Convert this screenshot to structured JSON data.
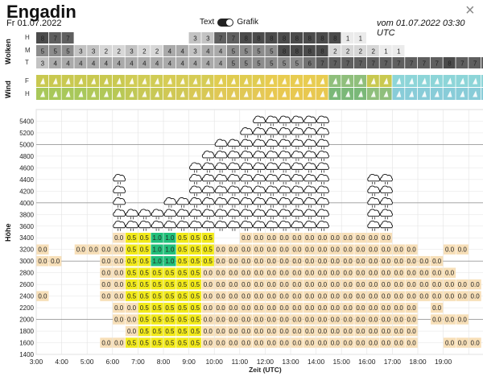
{
  "header": {
    "title": "Engadin",
    "date": "Fr 01.07.2022",
    "toggle_left": "Text",
    "toggle_right": "Grafik",
    "run_info": "vom 01.07.2022 03:30 UTC",
    "close_symbol": "×"
  },
  "labels": {
    "wolken": "Wolken",
    "wind": "Wind",
    "hoehe": "Höhe",
    "zeit": "Zeit (UTC)",
    "H": "H",
    "M": "M",
    "T": "T",
    "F": "F"
  },
  "clouds": {
    "H": [
      8,
      7,
      7,
      null,
      null,
      null,
      null,
      null,
      null,
      null,
      null,
      null,
      3,
      3,
      7,
      7,
      8,
      8,
      8,
      8,
      8,
      8,
      8,
      8,
      1,
      1,
      null,
      null,
      null,
      null,
      null,
      null,
      null,
      null,
      null,
      null
    ],
    "M": [
      5,
      5,
      5,
      3,
      3,
      2,
      2,
      3,
      2,
      2,
      4,
      4,
      3,
      4,
      4,
      5,
      5,
      5,
      5,
      8,
      8,
      8,
      8,
      2,
      2,
      2,
      2,
      1,
      1,
      null,
      null,
      null,
      null,
      null,
      null,
      null
    ],
    "T": [
      3,
      4,
      4,
      4,
      4,
      4,
      4,
      4,
      4,
      4,
      4,
      4,
      4,
      4,
      4,
      5,
      5,
      5,
      5,
      5,
      5,
      6,
      7,
      7,
      7,
      7,
      7,
      7,
      7,
      7,
      7,
      7,
      8,
      7,
      7,
      7
    ]
  },
  "wind_colors": {
    "F": [
      "#c9c950",
      "#c9c950",
      "#c9c950",
      "#c9c950",
      "#c9c950",
      "#c9c950",
      "#c9c950",
      "#d0cc55",
      "#d0cc55",
      "#d0cc55",
      "#d6cc55",
      "#d6cc55",
      "#d6cc55",
      "#d6cc55",
      "#e0cc50",
      "#e0cc50",
      "#e0cc50",
      "#e0cc50",
      "#e8cc50",
      "#e8cc50",
      "#e8cc50",
      "#e8cc50",
      "#e8cc50",
      "#8fbf7c",
      "#8fbf7c",
      "#8fbf7c",
      "#c9c950",
      "#c9c950",
      "#8dd5d8",
      "#8dd5d8",
      "#8dd5d8",
      "#8dd5d8",
      "#8dd5d8",
      "#8dd5d8",
      "#8dd5d8",
      "#8dd5d8"
    ],
    "H": [
      "#a8c85a",
      "#a8c85a",
      "#a8c85a",
      "#a8c85a",
      "#b0c858",
      "#b0c858",
      "#b8c855",
      "#c0c855",
      "#c8c855",
      "#c8c855",
      "#d0c855",
      "#d0c855",
      "#d8c855",
      "#d8c855",
      "#e0c855",
      "#e0c855",
      "#e0c855",
      "#e4c855",
      "#e8c850",
      "#e8c850",
      "#e8c850",
      "#e8c850",
      "#e8c850",
      "#7ab878",
      "#7ab878",
      "#7ab878",
      "#8fbf7c",
      "#8fbf7c",
      "#88ccd8",
      "#88ccd8",
      "#88ccd8",
      "#88ccd8",
      "#88ccd8",
      "#88ccd8",
      "#88ccd8",
      "#88ccd8"
    ]
  },
  "y_ticks": [
    1400,
    1600,
    1800,
    2000,
    2200,
    2400,
    2600,
    2800,
    3000,
    3200,
    3400,
    3600,
    3800,
    4000,
    4200,
    4400,
    4600,
    4800,
    5000,
    5200,
    5400
  ],
  "x_ticks": [
    "3:00",
    "4:00",
    "5:00",
    "6:00",
    "7:00",
    "8:00",
    "9:00",
    "10:00",
    "11:00",
    "12:00",
    "13:00",
    "14:00",
    "15:00",
    "16:00",
    "17:00",
    "18:00",
    "19:00"
  ],
  "cloud_tops": [
    null,
    null,
    null,
    null,
    null,
    null,
    4400,
    3900,
    3900,
    3900,
    4000,
    4100,
    4700,
    4800,
    5000,
    5100,
    5200,
    5400,
    5500,
    5500,
    5500,
    5500,
    5500,
    3700,
    null,
    null,
    4500,
    4500,
    null,
    null,
    null,
    null,
    null,
    null,
    null,
    null
  ],
  "cloud_base": [
    null,
    null,
    null,
    null,
    null,
    null,
    3600,
    3600,
    3600,
    3600,
    3600,
    3600,
    3600,
    3600,
    3600,
    3600,
    3600,
    3600,
    3600,
    3600,
    3600,
    3600,
    3600,
    3800,
    null,
    null,
    3600,
    3600,
    null,
    null,
    null,
    null,
    null,
    null,
    null,
    null
  ],
  "lift_cells": [
    {
      "alt": 3400,
      "vals": [
        null,
        null,
        null,
        null,
        null,
        null,
        "0.0",
        "0.5",
        "0.5",
        "1.0",
        "1.0",
        "0.5",
        "0.5",
        "0.5",
        null,
        null,
        "0.0",
        "0.0",
        "0.0",
        "0.0",
        "0.0",
        "0.0",
        "0.0",
        "0.0",
        "0.0",
        "0.0",
        "0.0",
        "0.0",
        null,
        null,
        null,
        null,
        null,
        null,
        null,
        null
      ]
    },
    {
      "alt": 3200,
      "vals": [
        "0.0",
        null,
        null,
        "0.0",
        "0.0",
        "0.0",
        "0.0",
        "0.5",
        "0.5",
        "1.0",
        "1.0",
        "0.5",
        "0.5",
        "0.5",
        "0.0",
        "0.0",
        "0.0",
        "0.0",
        "0.0",
        "0.0",
        "0.0",
        "0.0",
        "0.0",
        "0.0",
        "0.0",
        "0.0",
        "0.0",
        "0.0",
        "0.0",
        "0.0",
        null,
        null,
        "0.0",
        "0.0",
        null,
        null
      ]
    },
    {
      "alt": 3000,
      "vals": [
        "0.0",
        "0.0",
        null,
        null,
        null,
        "0.0",
        "0.0",
        "0.5",
        "0.5",
        "1.0",
        "1.0",
        "0.5",
        "0.5",
        "0.5",
        "0.0",
        "0.0",
        "0.0",
        "0.0",
        "0.0",
        "0.0",
        "0.0",
        "0.0",
        "0.0",
        "0.0",
        "0.0",
        "0.0",
        "0.0",
        "0.0",
        "0.0",
        "0.0",
        "0.0",
        "0.0",
        null,
        null,
        null,
        null
      ]
    },
    {
      "alt": 2800,
      "vals": [
        null,
        null,
        null,
        null,
        null,
        "0.0",
        "0.0",
        "0.5",
        "0.5",
        "0.5",
        "0.5",
        "0.5",
        "0.5",
        "0.0",
        "0.0",
        "0.0",
        "0.0",
        "0.0",
        "0.0",
        "0.0",
        "0.0",
        "0.0",
        "0.0",
        "0.0",
        "0.0",
        "0.0",
        "0.0",
        "0.0",
        "0.0",
        "0.0",
        "0.0",
        "0.0",
        "0.0",
        null,
        null,
        null
      ]
    },
    {
      "alt": 2600,
      "vals": [
        null,
        null,
        null,
        null,
        null,
        "0.0",
        "0.0",
        "0.5",
        "0.5",
        "0.5",
        "0.5",
        "0.5",
        "0.5",
        "0.0",
        "0.0",
        "0.0",
        "0.0",
        "0.0",
        "0.0",
        "0.0",
        "0.0",
        "0.0",
        "0.0",
        "0.0",
        "0.0",
        "0.0",
        "0.0",
        "0.0",
        "0.0",
        "0.0",
        "0.0",
        "0.0",
        "0.0",
        "0.0",
        "0.0",
        null
      ]
    },
    {
      "alt": 2400,
      "vals": [
        "0.0",
        null,
        null,
        null,
        null,
        "0.0",
        "0.0",
        "0.5",
        "0.5",
        "0.5",
        "0.5",
        "0.5",
        "0.5",
        "0.0",
        "0.0",
        "0.0",
        "0.0",
        "0.0",
        "0.0",
        "0.0",
        "0.0",
        "0.0",
        "0.0",
        "0.0",
        "0.0",
        "0.0",
        "0.0",
        "0.0",
        "0.0",
        "0.0",
        "0.0",
        "0.0",
        "0.0",
        "0.0",
        "0.0",
        null
      ]
    },
    {
      "alt": 2200,
      "vals": [
        null,
        null,
        null,
        null,
        null,
        null,
        "0.0",
        "0.0",
        "0.5",
        "0.5",
        "0.5",
        "0.5",
        "0.5",
        "0.0",
        "0.0",
        "0.0",
        "0.0",
        "0.0",
        "0.0",
        "0.0",
        "0.0",
        "0.0",
        "0.0",
        "0.0",
        "0.0",
        "0.0",
        "0.0",
        "0.0",
        "0.0",
        "0.0",
        null,
        "0.0",
        null,
        null,
        null,
        null
      ]
    },
    {
      "alt": 2000,
      "vals": [
        null,
        null,
        null,
        null,
        null,
        null,
        "0.0",
        "0.0",
        "0.5",
        "0.5",
        "0.5",
        "0.5",
        "0.5",
        "0.0",
        "0.0",
        "0.0",
        "0.0",
        "0.0",
        "0.0",
        "0.0",
        "0.0",
        "0.0",
        "0.0",
        "0.0",
        "0.0",
        "0.0",
        "0.0",
        "0.0",
        "0.0",
        "0.0",
        null,
        "0.0",
        "0.0",
        "0.0",
        null,
        null
      ]
    },
    {
      "alt": 1800,
      "vals": [
        null,
        null,
        null,
        null,
        null,
        null,
        null,
        "0.0",
        "0.5",
        "0.5",
        "0.5",
        "0.5",
        "0.5",
        "0.0",
        "0.0",
        "0.0",
        "0.0",
        "0.0",
        "0.0",
        "0.0",
        "0.0",
        "0.0",
        "0.0",
        "0.0",
        "0.0",
        "0.0",
        "0.0",
        "0.0",
        "0.0",
        "0.0",
        null,
        null,
        null,
        null,
        null,
        null
      ]
    },
    {
      "alt": 1600,
      "vals": [
        null,
        null,
        null,
        null,
        null,
        "0.0",
        "0.0",
        "0.5",
        "0.5",
        "0.5",
        "0.5",
        "0.5",
        "0.5",
        "0.0",
        "0.0",
        "0.0",
        "0.0",
        "0.0",
        "0.0",
        "0.0",
        "0.0",
        "0.0",
        "0.0",
        "0.0",
        "0.0",
        "0.0",
        "0.0",
        "0.0",
        "0.0",
        "0.0",
        null,
        null,
        "0.0",
        "0.0",
        "0.0",
        null
      ]
    }
  ]
}
